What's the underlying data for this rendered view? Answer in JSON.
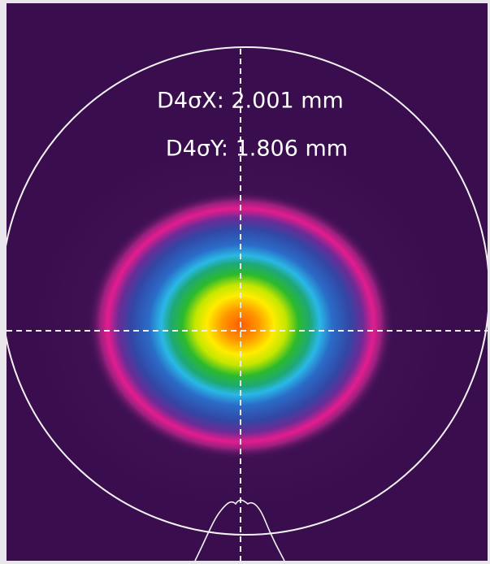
{
  "labels": {
    "x": "D4σX: 2.001 mm",
    "y": "D4σY: 1.806 mm"
  }
}
